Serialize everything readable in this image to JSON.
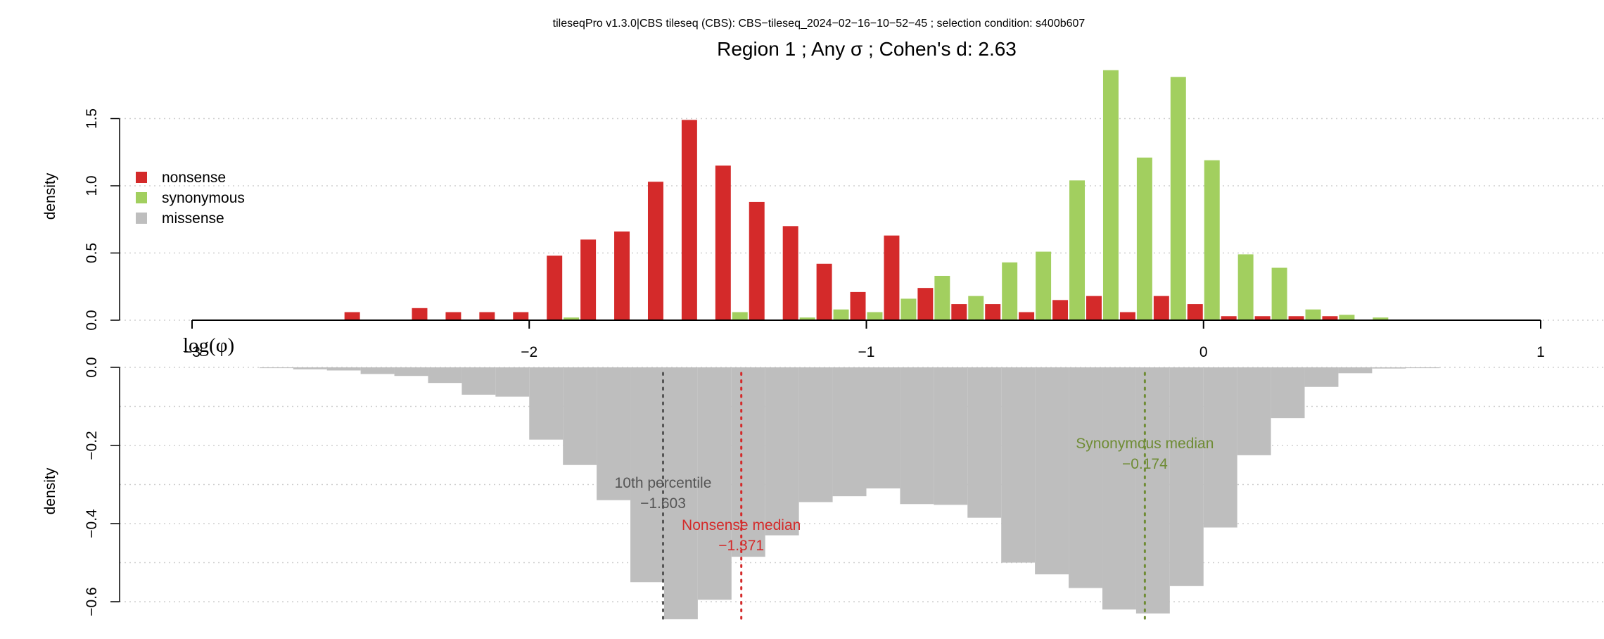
{
  "header": {
    "super_title": "tileseqPro v1.3.0|CBS tileseq (CBS): CBS−tileseq_2024−02−16−10−52−45 ; selection condition: s400b607",
    "title": "Region 1 ; Any σ ; Cohen's d:  2.63"
  },
  "colors": {
    "nonsense": "#d42a2a",
    "synonymous": "#a2cf5f",
    "missense": "#bebebe",
    "tenth_percentile": "#555555",
    "nonsense_median": "#d42a2a",
    "synonymous_median": "#6f8c35",
    "grid": "#cfcfcf"
  },
  "chart_data": [
    {
      "type": "bar",
      "panel": "top",
      "ylabel": "density",
      "xlabel": "log(φ)",
      "xlim": [
        -3,
        1
      ],
      "ylim": [
        0,
        1.85
      ],
      "x_ticks": [
        -3,
        -2,
        -1,
        0,
        1
      ],
      "x_tick_labels": [
        "−3",
        "−2",
        "−1",
        "0",
        "1"
      ],
      "y_ticks": [
        0,
        0.5,
        1,
        1.5
      ],
      "y_tick_labels": [
        "0.0",
        "0.5",
        "1.0",
        "1.5"
      ],
      "grid": true,
      "legend": {
        "placement": "top-left",
        "entries": [
          "nonsense",
          "synonymous",
          "missense"
        ]
      },
      "bin_width": 0.1,
      "series": [
        {
          "name": "nonsense",
          "x": [
            -2.5,
            -2.3,
            -2.2,
            -2.1,
            -2.0,
            -1.9,
            -1.8,
            -1.7,
            -1.6,
            -1.5,
            -1.4,
            -1.3,
            -1.2,
            -1.1,
            -1.0,
            -0.9,
            -0.8,
            -0.7,
            -0.6,
            -0.5,
            -0.4,
            -0.3,
            -0.2,
            -0.1,
            0.0,
            0.1,
            0.2,
            0.3,
            0.4
          ],
          "values": [
            0.06,
            0.09,
            0.06,
            0.06,
            0.06,
            0.48,
            0.6,
            0.66,
            1.03,
            1.49,
            1.15,
            0.88,
            0.7,
            0.42,
            0.21,
            0.63,
            0.24,
            0.12,
            0.12,
            0.06,
            0.15,
            0.18,
            0.06,
            0.18,
            0.12,
            0.03,
            0.03,
            0.03,
            0.03
          ]
        },
        {
          "name": "synonymous",
          "x": [
            -1.9,
            -1.4,
            -1.2,
            -1.1,
            -1.0,
            -0.9,
            -0.8,
            -0.7,
            -0.6,
            -0.5,
            -0.4,
            -0.3,
            -0.2,
            -0.1,
            0.0,
            0.1,
            0.2,
            0.3,
            0.4,
            0.5
          ],
          "values": [
            0.02,
            0.06,
            0.02,
            0.08,
            0.06,
            0.16,
            0.33,
            0.18,
            0.43,
            0.51,
            1.04,
            1.86,
            1.21,
            1.81,
            1.19,
            0.49,
            0.39,
            0.08,
            0.04,
            0.02
          ]
        }
      ]
    },
    {
      "type": "bar",
      "panel": "bottom",
      "orientation": "inverted",
      "ylabel": "density",
      "ylim": [
        -0.64,
        0
      ],
      "y_ticks": [
        0,
        -0.2,
        -0.4,
        -0.6
      ],
      "y_tick_labels": [
        "0.0",
        "−0.2",
        "−0.4",
        "−0.6"
      ],
      "grid": true,
      "bin_width": 0.1,
      "series": [
        {
          "name": "missense",
          "x": [
            -2.75,
            -2.65,
            -2.55,
            -2.45,
            -2.35,
            -2.25,
            -2.15,
            -2.05,
            -1.95,
            -1.85,
            -1.75,
            -1.65,
            -1.55,
            -1.45,
            -1.35,
            -1.25,
            -1.15,
            -1.05,
            -0.95,
            -0.85,
            -0.75,
            -0.65,
            -0.55,
            -0.45,
            -0.35,
            -0.25,
            -0.15,
            -0.05,
            0.05,
            0.15,
            0.25,
            0.35,
            0.45,
            0.55,
            0.65
          ],
          "values": [
            -0.002,
            -0.005,
            -0.008,
            -0.017,
            -0.022,
            -0.04,
            -0.07,
            -0.075,
            -0.185,
            -0.25,
            -0.34,
            -0.55,
            -0.645,
            -0.595,
            -0.485,
            -0.43,
            -0.345,
            -0.33,
            -0.31,
            -0.35,
            -0.352,
            -0.385,
            -0.5,
            -0.53,
            -0.565,
            -0.62,
            -0.63,
            -0.56,
            -0.41,
            -0.225,
            -0.13,
            -0.05,
            -0.015,
            -0.003,
            -0.002
          ]
        }
      ],
      "annotations": [
        {
          "key": "tenth_percentile",
          "label": "10th percentile",
          "value": "−1.603",
          "x": -1.603
        },
        {
          "key": "nonsense_median",
          "label": "Nonsense median",
          "value": "−1.371",
          "x": -1.371
        },
        {
          "key": "synonymous_median",
          "label": "Synonymous median",
          "value": "−0.174",
          "x": -0.174
        }
      ]
    }
  ]
}
